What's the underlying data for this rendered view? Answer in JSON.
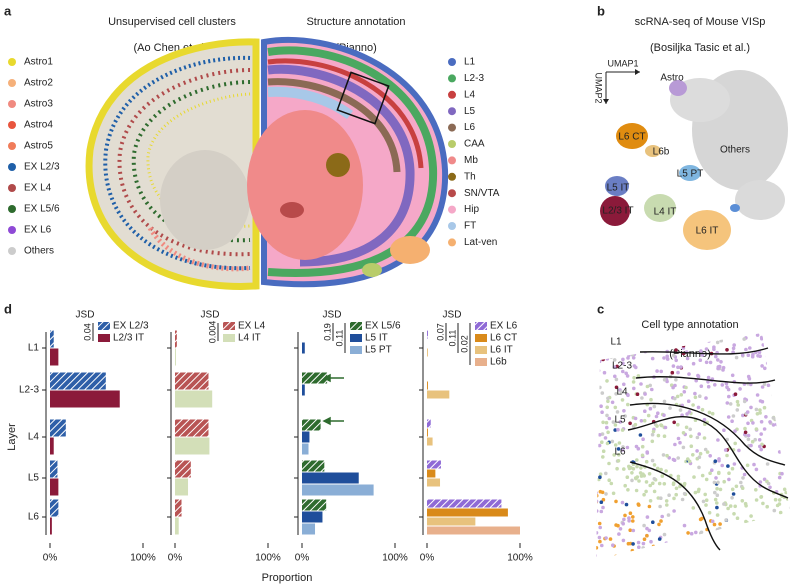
{
  "panel_labels": [
    "a",
    "b",
    "c",
    "d"
  ],
  "panel_a": {
    "left_title": "Unsupervised cell clusters",
    "left_subtitle": "(Ao Chen et al.)",
    "right_title": "Structure annotation",
    "right_subtitle": "(Pianno)",
    "clusters": [
      {
        "name": "Astro1",
        "color": "#e8d92e"
      },
      {
        "name": "Astro2",
        "color": "#f5b07a"
      },
      {
        "name": "Astro3",
        "color": "#f08a80"
      },
      {
        "name": "Astro4",
        "color": "#e8553e"
      },
      {
        "name": "Astro5",
        "color": "#f07c5a"
      },
      {
        "name": "EX L2/3",
        "color": "#1f5fa8"
      },
      {
        "name": "EX L4",
        "color": "#b04a4a"
      },
      {
        "name": "EX L5/6",
        "color": "#2e6b2e"
      },
      {
        "name": "EX L6",
        "color": "#8f4ad6"
      },
      {
        "name": "Others",
        "color": "#cccccc"
      }
    ],
    "structures": [
      {
        "name": "L1",
        "color": "#4a6cc0"
      },
      {
        "name": "L2-3",
        "color": "#4aa860"
      },
      {
        "name": "L4",
        "color": "#c84040"
      },
      {
        "name": "L5",
        "color": "#8068c0"
      },
      {
        "name": "L6",
        "color": "#8b6a55"
      },
      {
        "name": "CAA",
        "color": "#b8cc6a"
      },
      {
        "name": "Mb",
        "color": "#f08a8a"
      },
      {
        "name": "Th",
        "color": "#8b6a18"
      },
      {
        "name": "SN/VTA",
        "color": "#b84a4a"
      },
      {
        "name": "Hip",
        "color": "#f5a8c8"
      },
      {
        "name": "FT",
        "color": "#a8c8e8"
      },
      {
        "name": "Lat-ven",
        "color": "#f5b070"
      }
    ]
  },
  "panel_b": {
    "title": "scRNA-seq of Mouse VISp",
    "subtitle": "(Bosiljka Tasic et al.)",
    "axis_x": "UMAP1",
    "axis_y": "UMAP2",
    "clusters": [
      "Astro",
      "L6 CT",
      "L6b",
      "Others",
      "L5 PT",
      "L5 IT",
      "L2/3 IT",
      "L4 IT",
      "L6 IT"
    ]
  },
  "panel_c": {
    "title": "Cell type annotation",
    "subtitle": "(Pianno)",
    "layers": [
      "L1",
      "L2-3",
      "L4",
      "L5",
      "L6"
    ]
  },
  "panel_d": {
    "y_label": "Layer",
    "x_label": "Proportion"
  },
  "chart_data": [
    {
      "type": "barh",
      "categories": [
        "L1",
        "L2-3",
        "L4",
        "L5",
        "L6"
      ],
      "xlim": [
        0,
        100
      ],
      "xticks": [
        {
          "value": 0,
          "label": "0%"
        },
        {
          "value": 100,
          "label": "100%"
        }
      ],
      "annotation_label": "JSD",
      "jsd_values": [
        0.04
      ],
      "series": [
        {
          "name": "EX L2/3",
          "color": "#2e5fa8",
          "hatch": true,
          "values": [
            4,
            60,
            17,
            8,
            9
          ]
        },
        {
          "name": "L2/3 IT",
          "color": "#8b1a3a",
          "hatch": false,
          "values": [
            9,
            75,
            4,
            9,
            2
          ]
        }
      ]
    },
    {
      "type": "barh",
      "categories": [
        "L1",
        "L2-3",
        "L4",
        "L5",
        "L6"
      ],
      "xlim": [
        0,
        100
      ],
      "xticks": [
        {
          "value": 0,
          "label": "0%"
        },
        {
          "value": 100,
          "label": "100%"
        }
      ],
      "annotation_label": "JSD",
      "jsd_values": [
        0.004
      ],
      "series": [
        {
          "name": "EX L4",
          "color": "#b85454",
          "hatch": true,
          "values": [
            2,
            36,
            36,
            17,
            7
          ]
        },
        {
          "name": "L4 IT",
          "color": "#d3dfb8",
          "hatch": false,
          "values": [
            1,
            40,
            37,
            14,
            4
          ]
        }
      ]
    },
    {
      "type": "barh",
      "categories": [
        "L1",
        "L2-3",
        "L4",
        "L5",
        "L6"
      ],
      "xlim": [
        0,
        100
      ],
      "xticks": [
        {
          "value": 0,
          "label": "0%"
        },
        {
          "value": 100,
          "label": "100%"
        }
      ],
      "annotation_label": "JSD",
      "jsd_values": [
        0.19,
        0.11
      ],
      "series": [
        {
          "name": "EX L5/6",
          "color": "#2e6b2e",
          "hatch": true,
          "values": [
            0,
            27,
            20,
            24,
            26
          ]
        },
        {
          "name": "L5 IT",
          "color": "#1f4e9b",
          "hatch": false,
          "values": [
            3,
            3,
            8,
            61,
            22
          ]
        },
        {
          "name": "L5 PT",
          "color": "#8aaed6",
          "hatch": false,
          "values": [
            0,
            0,
            7,
            77,
            14
          ]
        }
      ]
    },
    {
      "type": "barh",
      "categories": [
        "L1",
        "L2-3",
        "L4",
        "L5",
        "L6"
      ],
      "xlim": [
        0,
        100
      ],
      "xticks": [
        {
          "value": 0,
          "label": "0%"
        },
        {
          "value": 100,
          "label": "100%"
        }
      ],
      "annotation_label": "JSD",
      "jsd_values": [
        0.07,
        0.11,
        0.02
      ],
      "series": [
        {
          "name": "EX L6",
          "color": "#8f6ad6",
          "hatch": true,
          "values": [
            1,
            0,
            4,
            15,
            80
          ]
        },
        {
          "name": "L6 CT",
          "color": "#d98a1a",
          "hatch": false,
          "values": [
            0,
            1,
            1,
            9,
            87
          ]
        },
        {
          "name": "L6 IT",
          "color": "#e8c27d",
          "hatch": false,
          "values": [
            1,
            24,
            6,
            14,
            52
          ]
        },
        {
          "name": "L6b",
          "color": "#e8b08c",
          "hatch": false,
          "values": [
            0,
            0,
            0,
            0,
            100
          ]
        }
      ]
    }
  ]
}
